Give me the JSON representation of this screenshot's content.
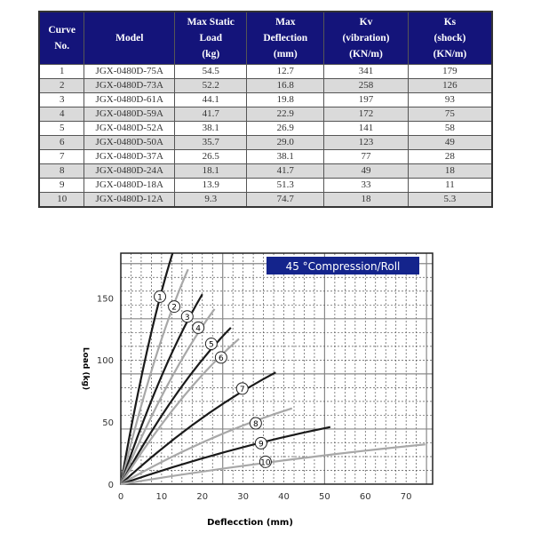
{
  "table": {
    "headers": [
      [
        "Curve",
        "No."
      ],
      [
        "Model"
      ],
      [
        "Max Static",
        "Load",
        "(kg)"
      ],
      [
        "Max",
        "Deflection",
        "(mm)"
      ],
      [
        "Kv",
        "(vibration)",
        "(KN/m)"
      ],
      [
        "Ks",
        "(shock)",
        "(KN/m)"
      ]
    ],
    "rows": [
      [
        "1",
        "JGX-0480D-75A",
        "54.5",
        "12.7",
        "341",
        "179"
      ],
      [
        "2",
        "JGX-0480D-73A",
        "52.2",
        "16.8",
        "258",
        "126"
      ],
      [
        "3",
        "JGX-0480D-61A",
        "44.1",
        "19.8",
        "197",
        "93"
      ],
      [
        "4",
        "JGX-0480D-59A",
        "41.7",
        "22.9",
        "172",
        "75"
      ],
      [
        "5",
        "JGX-0480D-52A",
        "38.1",
        "26.9",
        "141",
        "58"
      ],
      [
        "6",
        "JGX-0480D-50A",
        "35.7",
        "29.0",
        "123",
        "49"
      ],
      [
        "7",
        "JGX-0480D-37A",
        "26.5",
        "38.1",
        "77",
        "28"
      ],
      [
        "8",
        "JGX-0480D-24A",
        "18.1",
        "41.7",
        "49",
        "18"
      ],
      [
        "9",
        "JGX-0480D-18A",
        "13.9",
        "51.3",
        "33",
        "11"
      ],
      [
        "10",
        "JGX-0480D-12A",
        "9.3",
        "74.7",
        "18",
        "5.3"
      ]
    ]
  },
  "chart_data": {
    "type": "line",
    "title": "45 °Compression/Roll",
    "xlabel": "Deflecction (mm)",
    "ylabel": "Load (kg)",
    "xlim": [
      0,
      76.5
    ],
    "ylim": [
      0,
      186
    ],
    "xticks": [
      0,
      10,
      20,
      30,
      40,
      50,
      60,
      70
    ],
    "yticks": [
      0,
      50,
      100,
      150
    ],
    "grid": true,
    "legend_placement": "top-right",
    "colors": {
      "odd": "#1a1a1a",
      "even": "#a8a8a8",
      "title_bg": "#14248c"
    },
    "series": [
      {
        "name": "1",
        "points": [
          [
            0,
            0
          ],
          [
            6.35,
            106
          ],
          [
            12.7,
            186
          ]
        ],
        "label_at": [
          9.6,
          151
        ]
      },
      {
        "name": "2",
        "points": [
          [
            0,
            0
          ],
          [
            8.25,
            99
          ],
          [
            16.5,
            173
          ]
        ],
        "label_at": [
          13.1,
          143
        ]
      },
      {
        "name": "3",
        "points": [
          [
            0,
            0
          ],
          [
            10,
            87
          ],
          [
            20,
            153
          ]
        ],
        "label_at": [
          16.3,
          135
        ]
      },
      {
        "name": "4",
        "points": [
          [
            0,
            0
          ],
          [
            11.5,
            80
          ],
          [
            23,
            141
          ]
        ],
        "label_at": [
          19,
          126
        ]
      },
      {
        "name": "5",
        "points": [
          [
            0,
            0
          ],
          [
            13.5,
            72
          ],
          [
            27,
            126
          ]
        ],
        "label_at": [
          22.2,
          113
        ]
      },
      {
        "name": "6",
        "points": [
          [
            0,
            0
          ],
          [
            14.5,
            67
          ],
          [
            29,
            117
          ]
        ],
        "label_at": [
          24.6,
          102
        ]
      },
      {
        "name": "7",
        "points": [
          [
            0,
            0
          ],
          [
            19,
            51
          ],
          [
            38,
            90
          ]
        ],
        "label_at": [
          29.8,
          77
        ]
      },
      {
        "name": "8",
        "points": [
          [
            0,
            0
          ],
          [
            21,
            35
          ],
          [
            42,
            61
          ]
        ],
        "label_at": [
          33.1,
          49
        ]
      },
      {
        "name": "9",
        "points": [
          [
            0,
            0
          ],
          [
            25.7,
            26
          ],
          [
            51.4,
            46
          ]
        ],
        "label_at": [
          34.4,
          33
        ]
      },
      {
        "name": "10",
        "points": [
          [
            0,
            0
          ],
          [
            37.35,
            18
          ],
          [
            74.7,
            32
          ]
        ],
        "label_at": [
          35.5,
          18
        ]
      }
    ]
  }
}
